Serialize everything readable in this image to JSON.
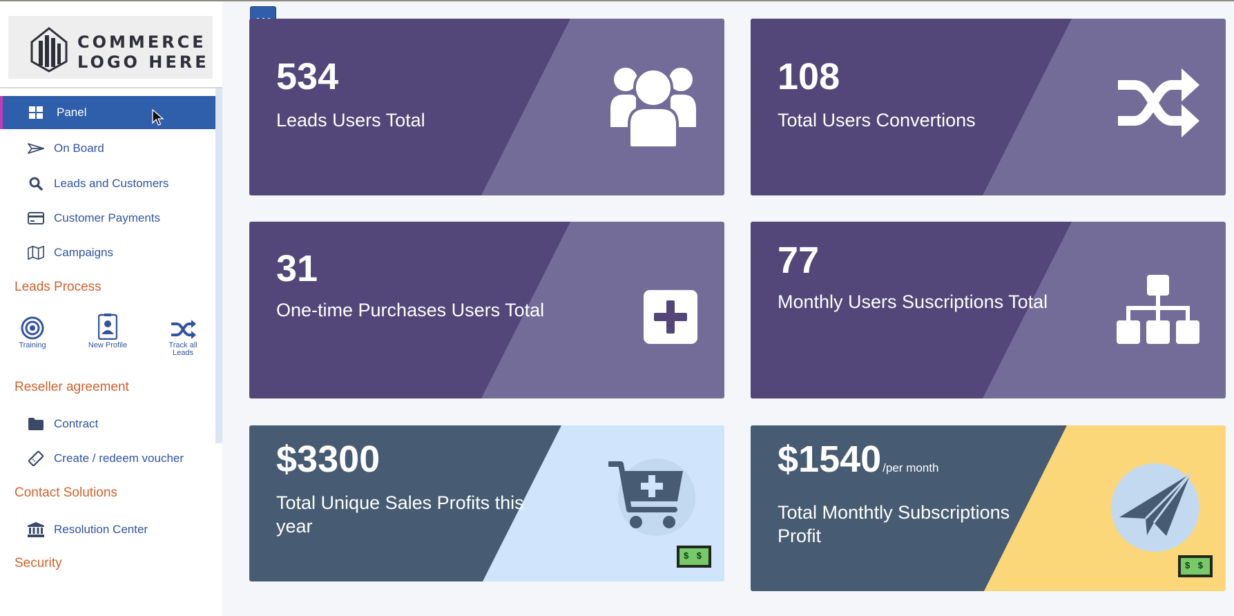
{
  "logo": {
    "line1": "COMMERCE",
    "line2": "LOGO HERE"
  },
  "menu_button_icon": "ellipsis-icon",
  "sidebar": {
    "nav": [
      {
        "label": "Panel",
        "icon": "grid-icon",
        "active": true
      },
      {
        "label": "On Board",
        "icon": "paper-plane-icon"
      },
      {
        "label": "Leads and Customers",
        "icon": "search-icon"
      },
      {
        "label": "Customer Payments",
        "icon": "credit-card-icon"
      },
      {
        "label": "Campaigns",
        "icon": "map-icon"
      }
    ],
    "sections": {
      "leads_process": "Leads Process",
      "reseller": "Reseller agreement",
      "contact": "Contact Solutions",
      "security": "Security"
    },
    "quick_actions": [
      {
        "label": "Training",
        "icon": "target-icon"
      },
      {
        "label": "New Profile",
        "icon": "id-badge-icon"
      },
      {
        "label": "Track all Leads",
        "icon": "shuffle-icon"
      }
    ],
    "reseller_items": [
      {
        "label": "Contract",
        "icon": "folder-icon"
      },
      {
        "label": "Create / redeem voucher",
        "icon": "ticket-icon"
      }
    ],
    "contact_items": [
      {
        "label": "Resolution Center",
        "icon": "bank-icon"
      }
    ]
  },
  "cards": [
    {
      "value": "534",
      "label": "Leads Users Total",
      "icon": "users-icon"
    },
    {
      "value": "108",
      "label": "Total Users Convertions",
      "icon": "shuffle-icon"
    },
    {
      "value": "31",
      "label": "One-time Purchases Users Total",
      "icon": "plus-square-icon"
    },
    {
      "value": "77",
      "label": "Monthly Users Suscriptions Total",
      "icon": "sitemap-icon"
    },
    {
      "value": "$3300",
      "label": "Total Unique Sales Profits this year",
      "icon": "cart-plus-icon"
    },
    {
      "value": "$1540",
      "suffix": "/per month",
      "label": "Total Monthtly Subscriptions Profit",
      "icon": "paper-plane-icon"
    }
  ],
  "colors": {
    "primary": "#2f5eab",
    "section_heading": "#d2612c",
    "card_purple": "#524778",
    "card_purple_light": "#746c98",
    "card_slate": "#475c73",
    "card_light_blue": "#d0e5fb",
    "card_yellow": "#fbd77a"
  }
}
